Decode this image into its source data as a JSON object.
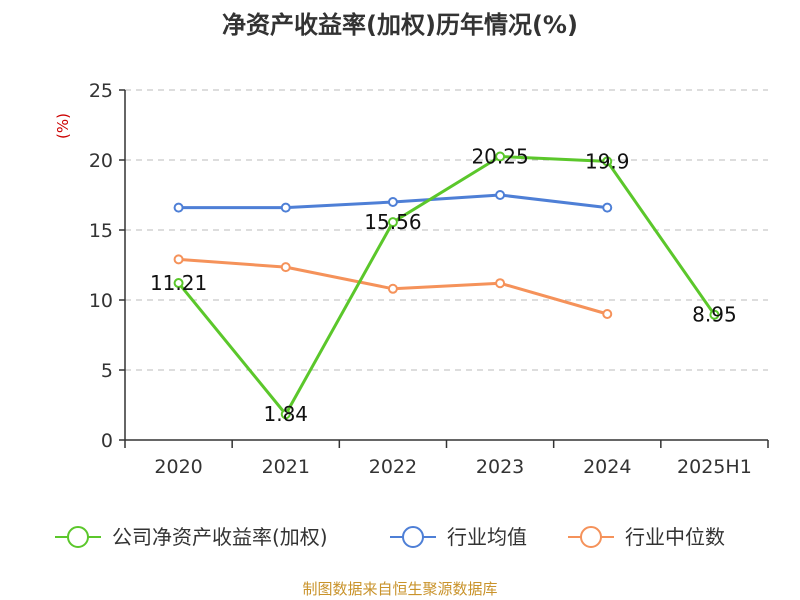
{
  "chart_data": {
    "type": "line",
    "title": "净资产收益率(加权)历年情况(%)",
    "ylabel": "(%)",
    "categories": [
      "2020",
      "2021",
      "2022",
      "2023",
      "2024",
      "2025H1"
    ],
    "ylim": [
      0,
      25
    ],
    "yticks": [
      0,
      5,
      10,
      15,
      20,
      25
    ],
    "grid": true,
    "legend_position": "bottom",
    "series": [
      {
        "name": "公司净资产收益率(加权)",
        "color": "#5bc72b",
        "values": [
          11.21,
          1.84,
          15.56,
          20.25,
          19.9,
          8.95
        ],
        "labels": [
          "11.21",
          "1.84",
          "15.56",
          "20.25",
          "19.9",
          "8.95"
        ]
      },
      {
        "name": "行业均值",
        "color": "#4e7fd6",
        "values": [
          16.6,
          16.6,
          17.0,
          17.5,
          16.6,
          null
        ]
      },
      {
        "name": "行业中位数",
        "color": "#f5925a",
        "values": [
          12.9,
          12.35,
          10.8,
          11.2,
          9.0,
          null
        ]
      }
    ]
  },
  "footer": {
    "source": "制图数据来自恒生聚源数据库"
  }
}
